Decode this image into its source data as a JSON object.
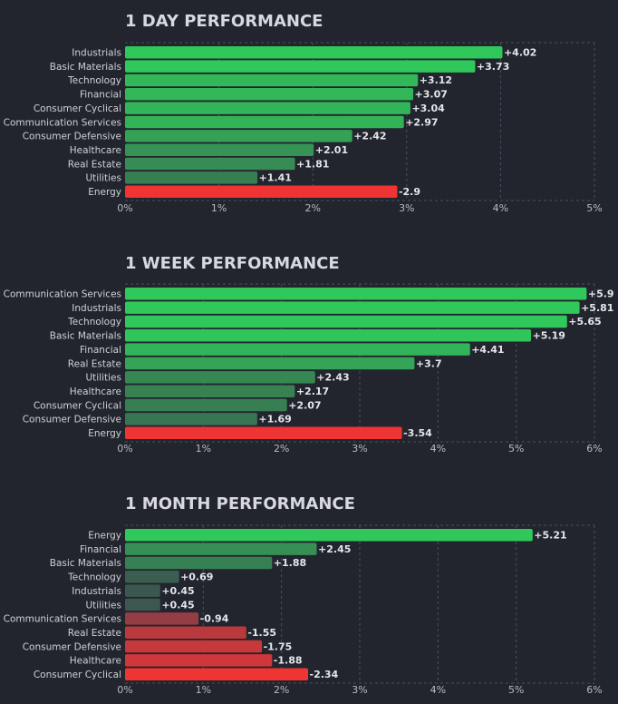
{
  "chart_data": [
    {
      "type": "bar",
      "orientation": "horizontal",
      "title": "1 DAY PERFORMANCE",
      "categories": [
        "Industrials",
        "Basic Materials",
        "Technology",
        "Financial",
        "Consumer Cyclical",
        "Communication Services",
        "Consumer Defensive",
        "Healthcare",
        "Real Estate",
        "Utilities",
        "Energy"
      ],
      "values": [
        4.02,
        3.73,
        3.12,
        3.07,
        3.04,
        2.97,
        2.42,
        2.01,
        1.81,
        1.41,
        -2.9
      ],
      "value_labels": [
        "+4.02",
        "+3.73",
        "+3.12",
        "+3.07",
        "+3.04",
        "+2.97",
        "+2.42",
        "+2.01",
        "+1.81",
        "+1.41",
        "-2.9"
      ],
      "xlim": [
        0,
        5
      ],
      "xticks": [
        "0%",
        "1%",
        "2%",
        "3%",
        "4%",
        "5%"
      ],
      "grid": true,
      "bar_length": "absolute value",
      "color_scale": {
        "positive_max": "#30c85a",
        "positive_min": "#3c4e4e",
        "negative_max": "#ef3434",
        "negative_min": "#66414c"
      }
    },
    {
      "type": "bar",
      "orientation": "horizontal",
      "title": "1 WEEK PERFORMANCE",
      "categories": [
        "Communication Services",
        "Industrials",
        "Technology",
        "Basic Materials",
        "Financial",
        "Real Estate",
        "Utilities",
        "Healthcare",
        "Consumer Cyclical",
        "Consumer Defensive",
        "Energy"
      ],
      "values": [
        5.9,
        5.81,
        5.65,
        5.19,
        4.41,
        3.7,
        2.43,
        2.17,
        2.07,
        1.69,
        -3.54
      ],
      "value_labels": [
        "+5.9",
        "+5.81",
        "+5.65",
        "+5.19",
        "+4.41",
        "+3.7",
        "+2.43",
        "+2.17",
        "+2.07",
        "+1.69",
        "-3.54"
      ],
      "xlim": [
        0,
        6
      ],
      "xticks": [
        "0%",
        "1%",
        "2%",
        "3%",
        "4%",
        "5%",
        "6%"
      ],
      "grid": true,
      "bar_length": "absolute value",
      "color_scale": {
        "positive_max": "#30c85a",
        "positive_min": "#3c4e4e",
        "negative_max": "#ef3434",
        "negative_min": "#66414c"
      }
    },
    {
      "type": "bar",
      "orientation": "horizontal",
      "title": "1 MONTH PERFORMANCE",
      "categories": [
        "Energy",
        "Financial",
        "Basic Materials",
        "Technology",
        "Industrials",
        "Utilities",
        "Communication Services",
        "Real Estate",
        "Consumer Defensive",
        "Healthcare",
        "Consumer Cyclical"
      ],
      "values": [
        5.21,
        2.45,
        1.88,
        0.69,
        0.45,
        0.45,
        -0.94,
        -1.55,
        -1.75,
        -1.88,
        -2.34
      ],
      "value_labels": [
        "+5.21",
        "+2.45",
        "+1.88",
        "+0.69",
        "+0.45",
        "+0.45",
        "-0.94",
        "-1.55",
        "-1.75",
        "-1.88",
        "-2.34"
      ],
      "xlim": [
        0,
        6
      ],
      "xticks": [
        "0%",
        "1%",
        "2%",
        "3%",
        "4%",
        "5%",
        "6%"
      ],
      "grid": true,
      "bar_length": "absolute value",
      "color_scale": {
        "positive_max": "#30c85a",
        "positive_min": "#3c4e4e",
        "negative_max": "#ef3434",
        "negative_min": "#66414c"
      }
    }
  ]
}
